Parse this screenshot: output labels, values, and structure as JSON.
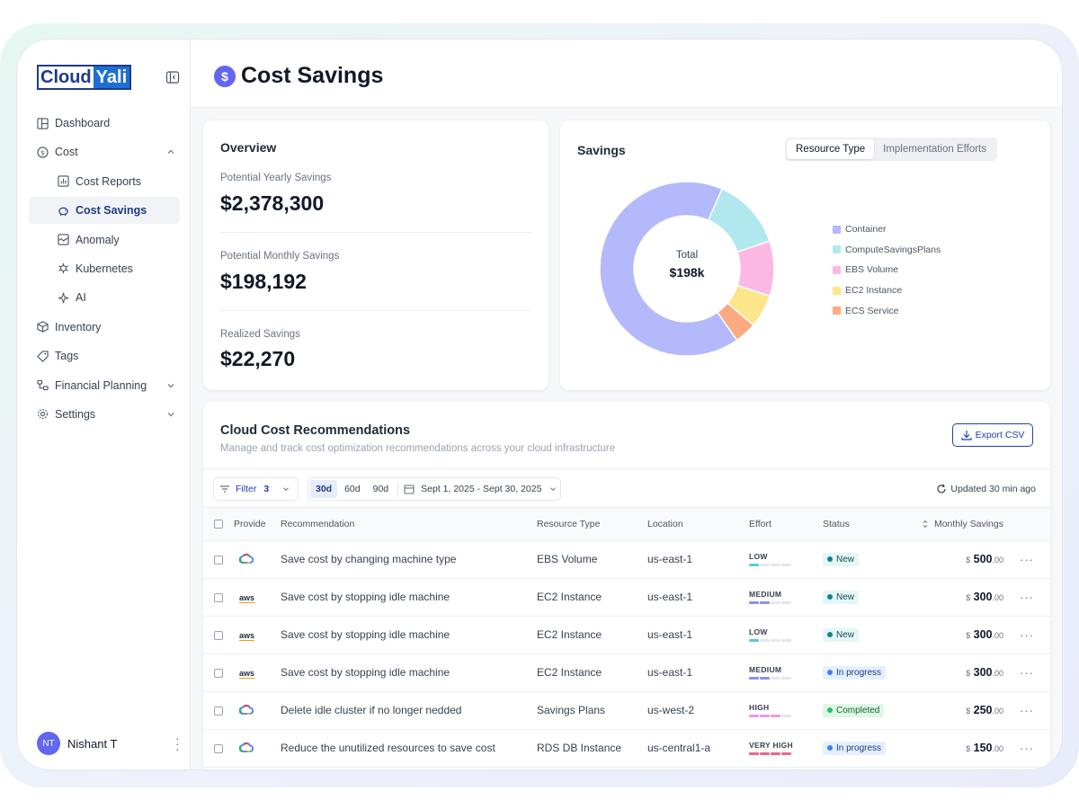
{
  "brand": {
    "part1": "Cloud",
    "part2": "Yali"
  },
  "sidebar": {
    "items": [
      {
        "label": "Dashboard",
        "icon": "dashboard-icon"
      },
      {
        "label": "Cost",
        "icon": "dollar-circle-icon"
      },
      {
        "label": "Cost Reports",
        "icon": "bar-chart-icon"
      },
      {
        "label": "Cost Savings",
        "icon": "piggy-bank-icon"
      },
      {
        "label": "Anomaly",
        "icon": "anomaly-icon"
      },
      {
        "label": "Kubernetes",
        "icon": "kubernetes-icon"
      },
      {
        "label": "AI",
        "icon": "sparkle-icon"
      },
      {
        "label": "Inventory",
        "icon": "box-icon"
      },
      {
        "label": "Tags",
        "icon": "tag-icon"
      },
      {
        "label": "Financial Planning",
        "icon": "financial-planning-icon"
      },
      {
        "label": "Settings",
        "icon": "gear-icon"
      }
    ],
    "active": "Cost Savings"
  },
  "user": {
    "initials": "NT",
    "name": "Nishant T"
  },
  "header": {
    "title": "Cost Savings",
    "icon_glyph": "$"
  },
  "overview": {
    "title": "Overview",
    "stats": [
      {
        "label": "Potential Yearly Savings",
        "value": "$2,378,300"
      },
      {
        "label": "Potential Monthly Savings",
        "value": "$198,192"
      },
      {
        "label": "Realized Savings",
        "value": "$22,270"
      }
    ]
  },
  "savings": {
    "title": "Savings",
    "tabs": [
      "Resource Type",
      "Implementation Efforts"
    ],
    "active_tab": "Resource Type",
    "total_label": "Total",
    "total_value": "$198k"
  },
  "chart_data": {
    "type": "pie",
    "categories": [
      "Container",
      "ComputeSavingsPlans",
      "EBS Volume",
      "EC2 Instance",
      "ECS Service"
    ],
    "values": [
      65,
      13,
      10,
      6,
      4
    ],
    "colors": [
      "#b3b9fb",
      "#b1e8f0",
      "#fbb8e4",
      "#fde68a",
      "#fcaa80"
    ],
    "legend_position": "right"
  },
  "recommendations": {
    "title": "Cloud Cost Recommendations",
    "subtitle": "Manage and track cost optimization recommendations across your cloud infrastructure",
    "export_label": "Export CSV",
    "filter_label": "Filter",
    "filter_count": "3",
    "ranges": [
      "30d",
      "60d",
      "90d"
    ],
    "active_range": "30d",
    "date_range": "Sept 1, 2025 - Sept 30, 2025",
    "updated": "Updated 30 min ago",
    "columns": [
      "Provide",
      "Recommendation",
      "Resource Type",
      "Location",
      "Effort",
      "Status",
      "Monthly Savings"
    ],
    "rows": [
      {
        "provider": "gcp",
        "recommendation": "Save cost by changing machine type",
        "resource": "EBS Volume",
        "location": "us-east-1",
        "effort": "LOW",
        "effort_level": 1,
        "status": "New",
        "currency": "$",
        "amount": "500",
        "cents": ".00"
      },
      {
        "provider": "aws",
        "recommendation": "Save cost by stopping idle machine",
        "resource": "EC2 Instance",
        "location": "us-east-1",
        "effort": "MEDIUM",
        "effort_level": 2,
        "status": "New",
        "currency": "$",
        "amount": "300",
        "cents": ".00"
      },
      {
        "provider": "aws",
        "recommendation": "Save cost by stopping idle machine",
        "resource": "EC2 Instance",
        "location": "us-east-1",
        "effort": "LOW",
        "effort_level": 1,
        "status": "New",
        "currency": "$",
        "amount": "300",
        "cents": ".00"
      },
      {
        "provider": "aws",
        "recommendation": "Save cost by stopping idle machine",
        "resource": "EC2 Instance",
        "location": "us-east-1",
        "effort": "MEDIUM",
        "effort_level": 2,
        "status": "In progress",
        "currency": "$",
        "amount": "300",
        "cents": ".00"
      },
      {
        "provider": "gcp",
        "recommendation": "Delete idle cluster if no longer nedded",
        "resource": "Savings Plans",
        "location": "us-west-2",
        "effort": "HIGH",
        "effort_level": 3,
        "status": "Completed",
        "currency": "$",
        "amount": "250",
        "cents": ".00"
      },
      {
        "provider": "gcp",
        "recommendation": "Reduce the unutilized resources to save cost",
        "resource": "RDS DB Instance",
        "location": "us-central1-a",
        "effort": "VERY HIGH",
        "effort_level": 4,
        "status": "In progress",
        "currency": "$",
        "amount": "150",
        "cents": ".00"
      }
    ],
    "aws_label": "aws"
  }
}
